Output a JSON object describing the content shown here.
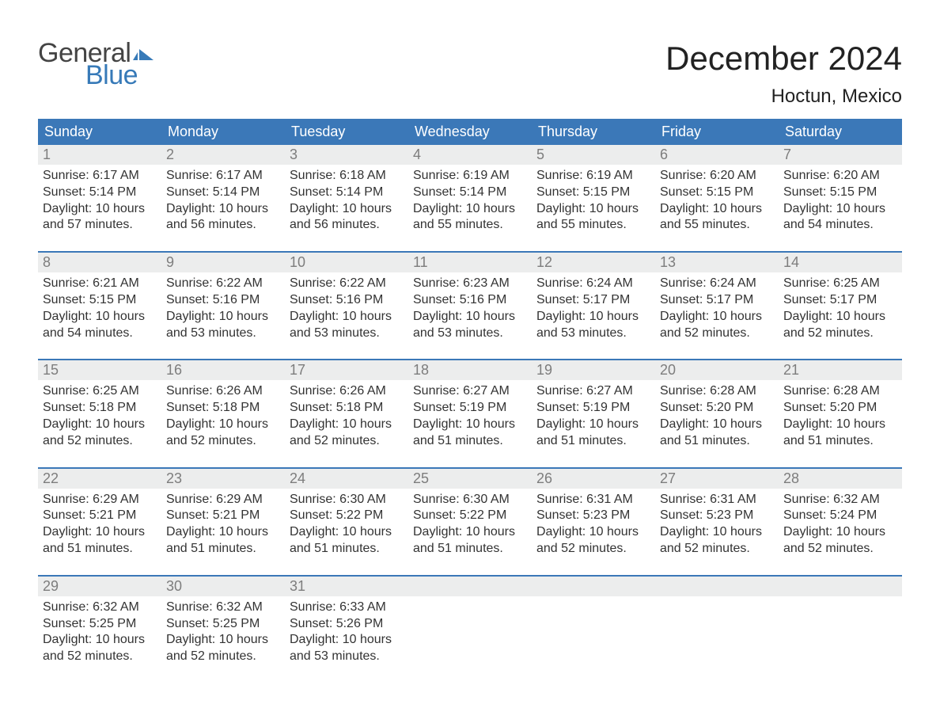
{
  "logo": {
    "part1": "General",
    "part2": "Blue"
  },
  "title": "December 2024",
  "location": "Hoctun, Mexico",
  "colors": {
    "header_bg": "#3b78b8",
    "header_text": "#ffffff",
    "band_bg": "#eceded",
    "daynum_text": "#7d7d7d",
    "body_text": "#333333",
    "logo_gray": "#444444",
    "logo_blue": "#377ab8"
  },
  "dayHeaders": [
    "Sunday",
    "Monday",
    "Tuesday",
    "Wednesday",
    "Thursday",
    "Friday",
    "Saturday"
  ],
  "weeks": [
    [
      {
        "n": "1",
        "sunrise": "Sunrise: 6:17 AM",
        "sunset": "Sunset: 5:14 PM",
        "day1": "Daylight: 10 hours",
        "day2": "and 57 minutes."
      },
      {
        "n": "2",
        "sunrise": "Sunrise: 6:17 AM",
        "sunset": "Sunset: 5:14 PM",
        "day1": "Daylight: 10 hours",
        "day2": "and 56 minutes."
      },
      {
        "n": "3",
        "sunrise": "Sunrise: 6:18 AM",
        "sunset": "Sunset: 5:14 PM",
        "day1": "Daylight: 10 hours",
        "day2": "and 56 minutes."
      },
      {
        "n": "4",
        "sunrise": "Sunrise: 6:19 AM",
        "sunset": "Sunset: 5:14 PM",
        "day1": "Daylight: 10 hours",
        "day2": "and 55 minutes."
      },
      {
        "n": "5",
        "sunrise": "Sunrise: 6:19 AM",
        "sunset": "Sunset: 5:15 PM",
        "day1": "Daylight: 10 hours",
        "day2": "and 55 minutes."
      },
      {
        "n": "6",
        "sunrise": "Sunrise: 6:20 AM",
        "sunset": "Sunset: 5:15 PM",
        "day1": "Daylight: 10 hours",
        "day2": "and 55 minutes."
      },
      {
        "n": "7",
        "sunrise": "Sunrise: 6:20 AM",
        "sunset": "Sunset: 5:15 PM",
        "day1": "Daylight: 10 hours",
        "day2": "and 54 minutes."
      }
    ],
    [
      {
        "n": "8",
        "sunrise": "Sunrise: 6:21 AM",
        "sunset": "Sunset: 5:15 PM",
        "day1": "Daylight: 10 hours",
        "day2": "and 54 minutes."
      },
      {
        "n": "9",
        "sunrise": "Sunrise: 6:22 AM",
        "sunset": "Sunset: 5:16 PM",
        "day1": "Daylight: 10 hours",
        "day2": "and 53 minutes."
      },
      {
        "n": "10",
        "sunrise": "Sunrise: 6:22 AM",
        "sunset": "Sunset: 5:16 PM",
        "day1": "Daylight: 10 hours",
        "day2": "and 53 minutes."
      },
      {
        "n": "11",
        "sunrise": "Sunrise: 6:23 AM",
        "sunset": "Sunset: 5:16 PM",
        "day1": "Daylight: 10 hours",
        "day2": "and 53 minutes."
      },
      {
        "n": "12",
        "sunrise": "Sunrise: 6:24 AM",
        "sunset": "Sunset: 5:17 PM",
        "day1": "Daylight: 10 hours",
        "day2": "and 53 minutes."
      },
      {
        "n": "13",
        "sunrise": "Sunrise: 6:24 AM",
        "sunset": "Sunset: 5:17 PM",
        "day1": "Daylight: 10 hours",
        "day2": "and 52 minutes."
      },
      {
        "n": "14",
        "sunrise": "Sunrise: 6:25 AM",
        "sunset": "Sunset: 5:17 PM",
        "day1": "Daylight: 10 hours",
        "day2": "and 52 minutes."
      }
    ],
    [
      {
        "n": "15",
        "sunrise": "Sunrise: 6:25 AM",
        "sunset": "Sunset: 5:18 PM",
        "day1": "Daylight: 10 hours",
        "day2": "and 52 minutes."
      },
      {
        "n": "16",
        "sunrise": "Sunrise: 6:26 AM",
        "sunset": "Sunset: 5:18 PM",
        "day1": "Daylight: 10 hours",
        "day2": "and 52 minutes."
      },
      {
        "n": "17",
        "sunrise": "Sunrise: 6:26 AM",
        "sunset": "Sunset: 5:18 PM",
        "day1": "Daylight: 10 hours",
        "day2": "and 52 minutes."
      },
      {
        "n": "18",
        "sunrise": "Sunrise: 6:27 AM",
        "sunset": "Sunset: 5:19 PM",
        "day1": "Daylight: 10 hours",
        "day2": "and 51 minutes."
      },
      {
        "n": "19",
        "sunrise": "Sunrise: 6:27 AM",
        "sunset": "Sunset: 5:19 PM",
        "day1": "Daylight: 10 hours",
        "day2": "and 51 minutes."
      },
      {
        "n": "20",
        "sunrise": "Sunrise: 6:28 AM",
        "sunset": "Sunset: 5:20 PM",
        "day1": "Daylight: 10 hours",
        "day2": "and 51 minutes."
      },
      {
        "n": "21",
        "sunrise": "Sunrise: 6:28 AM",
        "sunset": "Sunset: 5:20 PM",
        "day1": "Daylight: 10 hours",
        "day2": "and 51 minutes."
      }
    ],
    [
      {
        "n": "22",
        "sunrise": "Sunrise: 6:29 AM",
        "sunset": "Sunset: 5:21 PM",
        "day1": "Daylight: 10 hours",
        "day2": "and 51 minutes."
      },
      {
        "n": "23",
        "sunrise": "Sunrise: 6:29 AM",
        "sunset": "Sunset: 5:21 PM",
        "day1": "Daylight: 10 hours",
        "day2": "and 51 minutes."
      },
      {
        "n": "24",
        "sunrise": "Sunrise: 6:30 AM",
        "sunset": "Sunset: 5:22 PM",
        "day1": "Daylight: 10 hours",
        "day2": "and 51 minutes."
      },
      {
        "n": "25",
        "sunrise": "Sunrise: 6:30 AM",
        "sunset": "Sunset: 5:22 PM",
        "day1": "Daylight: 10 hours",
        "day2": "and 51 minutes."
      },
      {
        "n": "26",
        "sunrise": "Sunrise: 6:31 AM",
        "sunset": "Sunset: 5:23 PM",
        "day1": "Daylight: 10 hours",
        "day2": "and 52 minutes."
      },
      {
        "n": "27",
        "sunrise": "Sunrise: 6:31 AM",
        "sunset": "Sunset: 5:23 PM",
        "day1": "Daylight: 10 hours",
        "day2": "and 52 minutes."
      },
      {
        "n": "28",
        "sunrise": "Sunrise: 6:32 AM",
        "sunset": "Sunset: 5:24 PM",
        "day1": "Daylight: 10 hours",
        "day2": "and 52 minutes."
      }
    ],
    [
      {
        "n": "29",
        "sunrise": "Sunrise: 6:32 AM",
        "sunset": "Sunset: 5:25 PM",
        "day1": "Daylight: 10 hours",
        "day2": "and 52 minutes."
      },
      {
        "n": "30",
        "sunrise": "Sunrise: 6:32 AM",
        "sunset": "Sunset: 5:25 PM",
        "day1": "Daylight: 10 hours",
        "day2": "and 52 minutes."
      },
      {
        "n": "31",
        "sunrise": "Sunrise: 6:33 AM",
        "sunset": "Sunset: 5:26 PM",
        "day1": "Daylight: 10 hours",
        "day2": "and 53 minutes."
      },
      null,
      null,
      null,
      null
    ]
  ]
}
